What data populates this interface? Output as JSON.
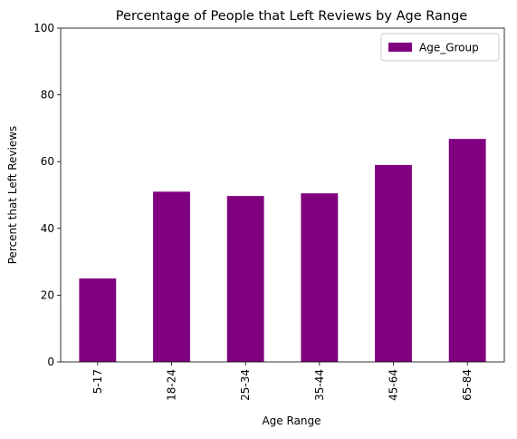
{
  "chart_data": {
    "type": "bar",
    "title": "Percentage of People that Left Reviews by Age Range",
    "xlabel": "Age Range",
    "ylabel": "Percent that Left Reviews",
    "categories": [
      "5-17",
      "18-24",
      "25-34",
      "35-44",
      "45-64",
      "65-84"
    ],
    "series": [
      {
        "name": "Age_Group",
        "values": [
          25.0,
          51.0,
          49.7,
          50.5,
          59.0,
          66.8
        ],
        "color": "#800080"
      }
    ],
    "ylim": [
      0,
      100
    ],
    "yticks": [
      0,
      20,
      40,
      60,
      80,
      100
    ],
    "grid": false,
    "legend_position": "top-right",
    "x_tick_rotation": "vertical"
  }
}
